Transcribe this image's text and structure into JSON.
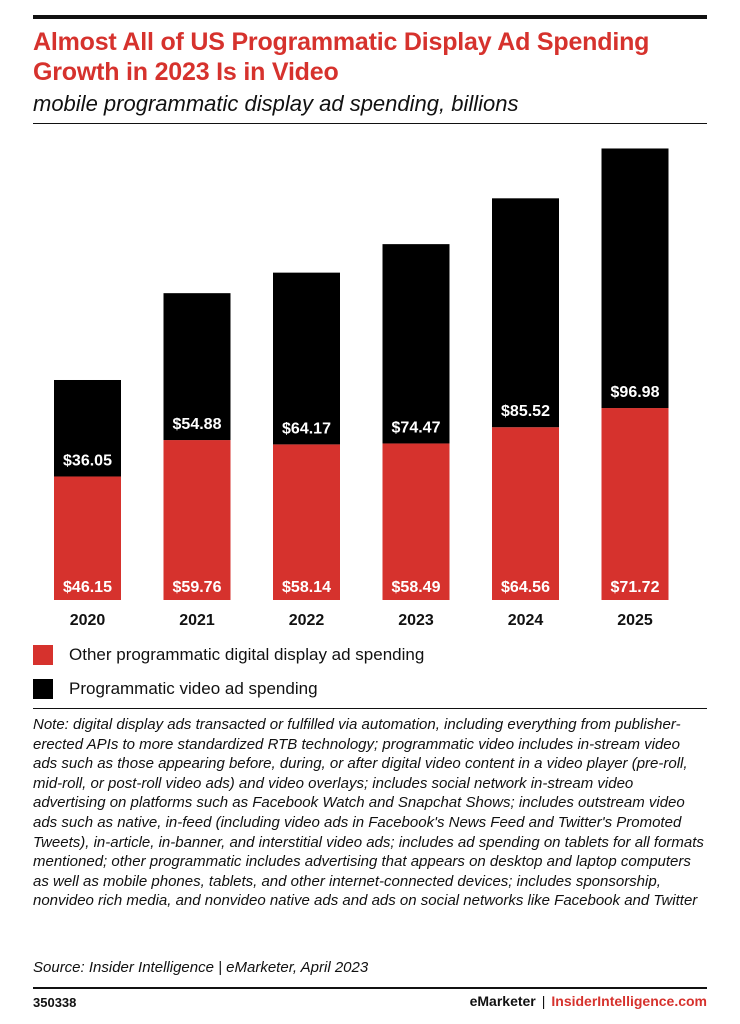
{
  "header": {
    "title": "Almost All of US Programmatic Display Ad Spending Growth in 2023 Is in Video",
    "subtitle": "mobile programmatic display ad spending, billions"
  },
  "chart_data": {
    "type": "bar",
    "stacked": true,
    "categories": [
      "2020",
      "2021",
      "2022",
      "2023",
      "2024",
      "2025"
    ],
    "series": [
      {
        "name": "Other programmatic digital display ad spending",
        "color": "#d6322d",
        "values": [
          46.15,
          59.76,
          58.14,
          58.49,
          64.56,
          71.72
        ],
        "labels": [
          "$46.15",
          "$59.76",
          "$58.14",
          "$58.49",
          "$64.56",
          "$71.72"
        ]
      },
      {
        "name": "Programmatic video ad spending",
        "color": "#000000",
        "values": [
          36.05,
          54.88,
          64.17,
          74.47,
          85.52,
          96.98
        ],
        "labels": [
          "$36.05",
          "$54.88",
          "$64.17",
          "$74.47",
          "$85.52",
          "$96.98"
        ]
      }
    ],
    "ylim": [
      0,
      170
    ],
    "grid": false,
    "legend_position": "bottom"
  },
  "legend": {
    "items": [
      {
        "label": "Other programmatic digital display ad spending",
        "color": "#d6322d"
      },
      {
        "label": "Programmatic video ad spending",
        "color": "#000000"
      }
    ]
  },
  "footer": {
    "note": "Note: digital display ads transacted or fulfilled via automation, including everything from publisher-erected APIs to more standardized RTB technology; programmatic video includes in-stream video ads such as those appearing before, during, or after digital video content in a video player (pre-roll, mid-roll, or post-roll video ads) and video overlays; includes social network in-stream video advertising on platforms such as Facebook Watch and Snapchat Shows; includes outstream video ads such as native, in-feed (including video ads in Facebook's News Feed and Twitter's Promoted Tweets), in-article, in-banner, and interstitial video ads; includes ad spending on tablets for all formats mentioned; other programmatic includes advertising that appears on desktop and laptop computers as well as mobile phones, tablets, and other internet-connected devices; includes sponsorship, nonvideo rich media, and nonvideo native ads and ads on social networks like Facebook and Twitter",
    "source": "Source: Insider Intelligence | eMarketer, April 2023",
    "chart_id": "350338",
    "brand_left": "eMarketer",
    "brand_sep": "|",
    "brand_right": "InsiderIntelligence.com"
  }
}
